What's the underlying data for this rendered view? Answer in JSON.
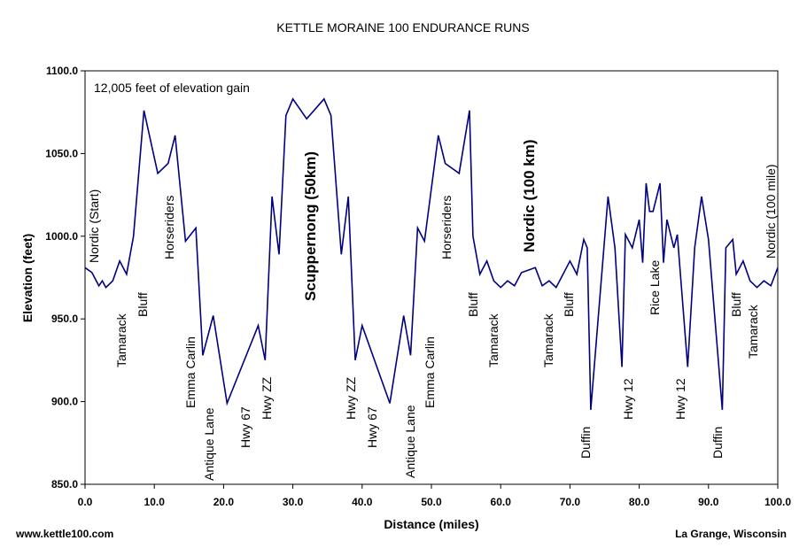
{
  "chart_data": {
    "type": "line",
    "title": "KETTLE MORAINE 100 ENDURANCE RUNS",
    "x_label": "Distance (miles)",
    "y_label": "Elevation (feet)",
    "note": "12,005 feet of elevation gain",
    "footer_left": "www.kettle100.com",
    "footer_right": "La Grange, Wisconsin",
    "color": "#000080",
    "x": [
      0,
      1,
      2,
      2.5,
      3,
      4,
      5,
      6,
      7,
      8.5,
      10.5,
      12,
      13,
      14.5,
      16,
      17,
      18.5,
      20.5,
      25,
      26,
      27,
      28,
      29,
      30,
      32,
      34.5,
      35.5,
      37,
      38,
      39,
      40,
      44,
      46,
      47,
      48,
      49,
      51,
      52,
      54,
      55.5,
      56,
      57,
      58,
      59,
      60,
      61,
      62,
      63,
      65,
      66,
      67,
      68,
      69,
      70,
      71,
      72,
      72.5,
      73,
      75.5,
      76.5,
      77.5,
      78,
      79,
      80,
      80.5,
      81,
      81.5,
      82,
      83,
      83.5,
      84,
      85,
      85.5,
      87,
      88,
      89,
      90,
      92,
      92.5,
      93.5,
      94,
      95,
      96,
      97,
      98,
      99,
      100
    ],
    "values": [
      981,
      978,
      970,
      973,
      969,
      973,
      985,
      977,
      1000,
      1076,
      1038,
      1044,
      1061,
      997,
      1005,
      928,
      952,
      899,
      946,
      925,
      1024,
      989,
      1073,
      1083,
      1071,
      1083,
      1073,
      989,
      1024,
      925,
      946,
      899,
      952,
      928,
      1005,
      997,
      1061,
      1044,
      1038,
      1076,
      1000,
      977,
      985,
      973,
      969,
      973,
      970,
      978,
      981,
      970,
      973,
      969,
      977,
      985,
      977,
      998,
      993,
      895,
      1024,
      993,
      921,
      1001,
      993,
      1010,
      984,
      1032,
      1015,
      1015,
      1032,
      984,
      1010,
      993,
      1001,
      921,
      993,
      1024,
      998,
      895,
      993,
      998,
      977,
      985,
      973,
      969,
      973,
      970,
      981
    ],
    "xlim": [
      0,
      100
    ],
    "xticks": [
      {
        "value": 0,
        "label": "0.0"
      },
      {
        "value": 10,
        "label": "10.0"
      },
      {
        "value": 20,
        "label": "20.0"
      },
      {
        "value": 30,
        "label": "30.0"
      },
      {
        "value": 40,
        "label": "40.0"
      },
      {
        "value": 50,
        "label": "50.0"
      },
      {
        "value": 60,
        "label": "60.0"
      },
      {
        "value": 70,
        "label": "70.0"
      },
      {
        "value": 80,
        "label": "80.0"
      },
      {
        "value": 90,
        "label": "90.0"
      },
      {
        "value": 100,
        "label": "100.0"
      }
    ],
    "ylim": [
      850,
      1100
    ],
    "yticks": [
      {
        "value": 850,
        "label": "850.0"
      },
      {
        "value": 900,
        "label": "900.0"
      },
      {
        "value": 950,
        "label": "950.0"
      },
      {
        "value": 1000,
        "label": "1000.0"
      },
      {
        "value": 1050,
        "label": "1050.0"
      },
      {
        "value": 1100,
        "label": "1100.0"
      }
    ],
    "annotations": [
      "Nordic (Start)",
      "Tamarack",
      "Bluff",
      "Horseriders",
      "Emma Carlin",
      "Antique Lane",
      "Hwy 67",
      "Hwy ZZ",
      "Scuppernong (50km)",
      "Hwy ZZ",
      "Hwy 67",
      "Antique Lane",
      "Emma Carlin",
      "Horseriders",
      "Bluff",
      "Tamarack",
      "Nordic (100 km)",
      "Tamarack",
      "Bluff",
      "Duffin",
      "Hwy 12",
      "Rice Lake",
      "Hwy 12",
      "Duffin",
      "Bluff",
      "Tamarack",
      "Nordic (100 mile)"
    ]
  }
}
